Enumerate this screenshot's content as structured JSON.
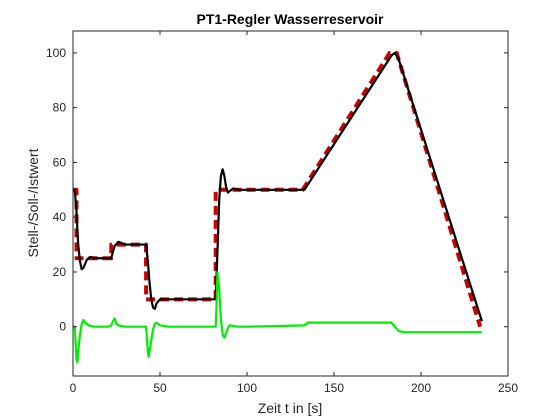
{
  "chart_data": {
    "type": "line",
    "title": "PT1-Regler Wasserreservoir",
    "xlabel": "Zeit t in [s]",
    "ylabel": "Stell-/Soll-/Istwert",
    "xlim": [
      0,
      250
    ],
    "ylim": [
      -18,
      108
    ],
    "xticks": [
      0,
      50,
      100,
      150,
      200,
      250
    ],
    "yticks": [
      0,
      20,
      40,
      60,
      80,
      100
    ],
    "xtick_labels": [
      "0",
      "50",
      "100",
      "150",
      "200",
      "250"
    ],
    "ytick_labels": [
      "0",
      "20",
      "40",
      "60",
      "80",
      "100"
    ],
    "grid": false,
    "colors": {
      "sollwert": "#cc0000",
      "istwert": "#000000",
      "stellwert": "#00ee00",
      "axis": "#262626"
    },
    "series": [
      {
        "key": "sollwert",
        "style": "dashed",
        "x": [
          0,
          2,
          2,
          22,
          22,
          42,
          42,
          82,
          82,
          132,
          182,
          186,
          234
        ],
        "y": [
          50,
          50,
          25,
          25,
          30,
          30,
          10,
          10,
          50,
          50,
          100,
          100,
          0
        ]
      },
      {
        "key": "istwert",
        "style": "solid",
        "x": [
          0,
          1,
          2,
          3,
          4,
          5,
          6,
          7,
          8,
          10,
          12,
          22,
          23,
          24,
          26,
          28,
          30,
          42,
          43,
          44,
          45,
          46,
          47,
          48,
          50,
          55,
          82,
          83,
          84,
          85,
          86,
          87,
          88,
          89,
          90,
          92,
          95,
          100,
          133,
          183,
          185,
          187,
          235
        ],
        "y": [
          50,
          50,
          42,
          30,
          24,
          21,
          21.5,
          23,
          24.5,
          25.5,
          25,
          25,
          27.5,
          29.5,
          31,
          30.5,
          30,
          30,
          24,
          16,
          10,
          7,
          6.5,
          8.5,
          10,
          10,
          10,
          27,
          46,
          55,
          57.5,
          55,
          51,
          49,
          49.5,
          50.5,
          50,
          50,
          50,
          99,
          100,
          98,
          2
        ]
      },
      {
        "key": "stellwert",
        "style": "solid",
        "x": [
          0,
          1,
          1.5,
          2,
          2.5,
          3,
          4,
          5,
          6,
          7,
          9,
          12,
          20,
          22,
          23,
          24,
          25,
          27,
          30,
          42,
          42.5,
          43,
          43.5,
          44,
          45,
          46,
          47,
          48,
          50,
          55,
          82,
          82.5,
          83,
          84,
          85,
          86,
          87,
          88,
          89,
          90,
          92,
          95,
          100,
          133,
          135,
          183,
          185,
          187,
          190,
          200,
          235
        ],
        "y": [
          0,
          0,
          -6,
          -12,
          -13,
          -9,
          -3,
          1,
          2.5,
          1.5,
          0.5,
          0,
          0,
          0.5,
          2,
          3,
          1,
          0.3,
          0,
          0,
          -4,
          -9,
          -11,
          -9,
          -5,
          -1,
          1,
          1.5,
          0.5,
          0,
          0,
          8,
          20,
          14,
          3,
          -3,
          -4,
          -2.5,
          -0.5,
          0.5,
          0.3,
          0,
          0,
          0.5,
          1.5,
          1.5,
          0,
          -1.5,
          -2,
          -2,
          -2
        ]
      }
    ]
  }
}
